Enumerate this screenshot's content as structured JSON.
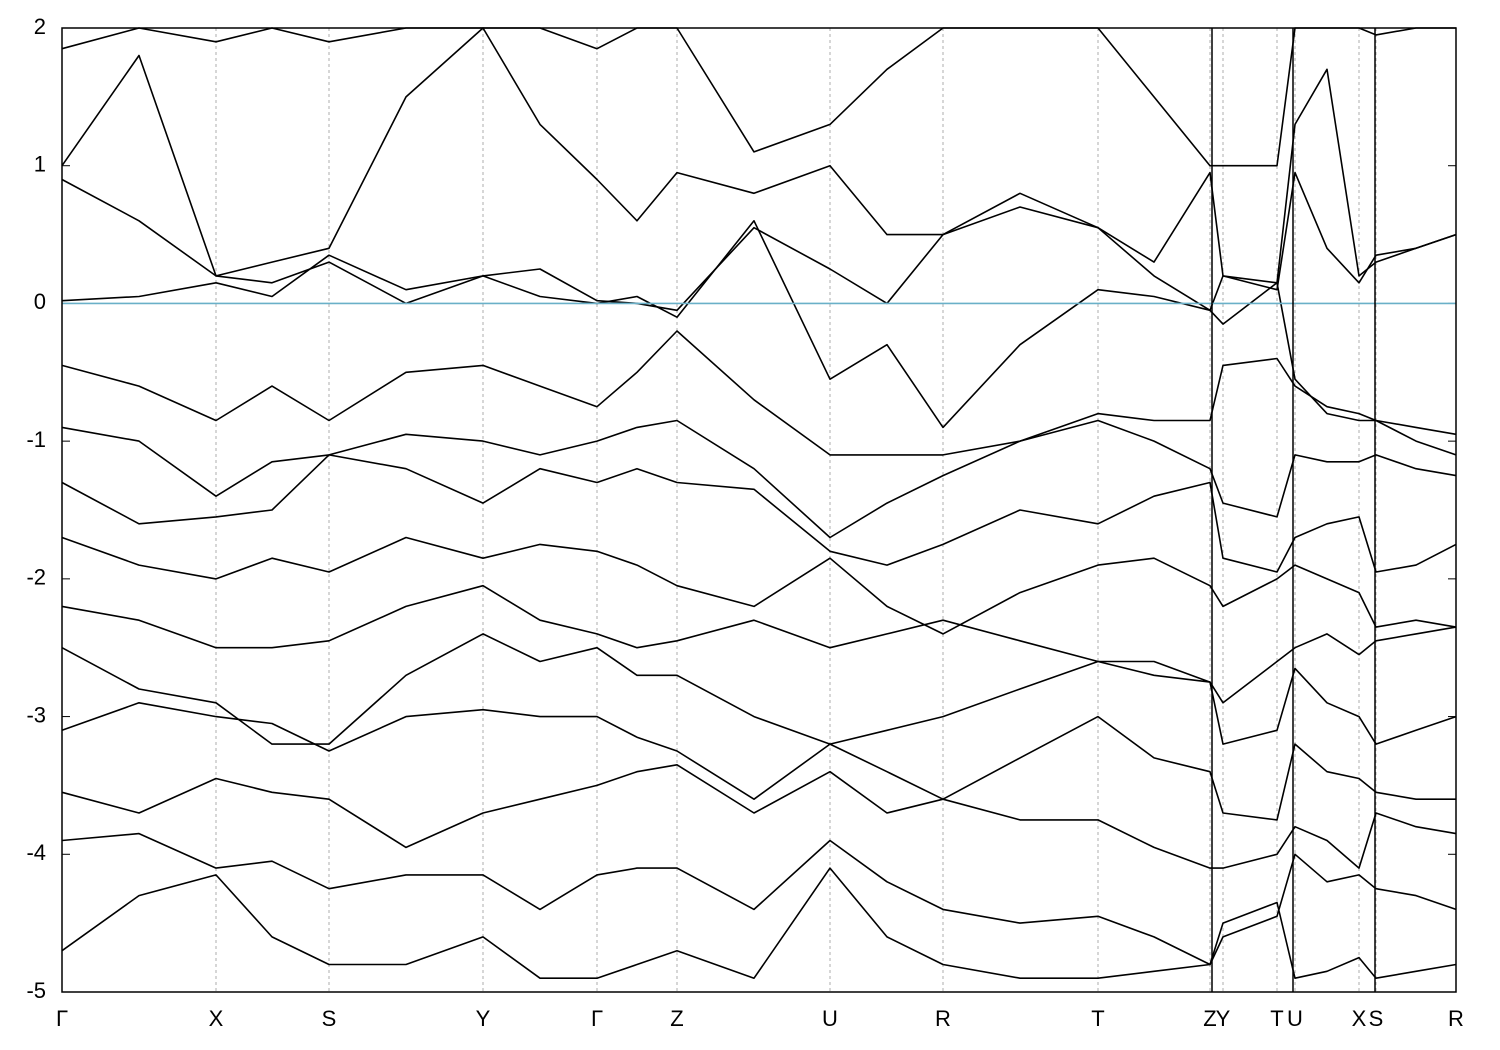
{
  "chart_data": {
    "type": "line",
    "x": [
      0,
      77,
      154,
      210,
      267,
      344,
      421,
      478,
      535,
      575,
      615,
      692,
      768,
      825,
      881,
      958,
      1036,
      1092,
      1148,
      1161,
      1215,
      1233,
      1265,
      1297,
      1314,
      1354,
      1394
    ],
    "xlim": [
      0,
      1394
    ],
    "xticks": [
      {
        "value": 0,
        "label": "Γ"
      },
      {
        "value": 154,
        "label": "X"
      },
      {
        "value": 267,
        "label": "S"
      },
      {
        "value": 421,
        "label": "Y"
      },
      {
        "value": 535,
        "label": "Γ"
      },
      {
        "value": 615,
        "label": "Z"
      },
      {
        "value": 768,
        "label": "U"
      },
      {
        "value": 881,
        "label": "R"
      },
      {
        "value": 1036,
        "label": "T"
      },
      {
        "value": 1148,
        "label": "Z"
      },
      {
        "value": 1161,
        "label": "Y"
      },
      {
        "value": 1215,
        "label": "T"
      },
      {
        "value": 1233,
        "label": "U"
      },
      {
        "value": 1297,
        "label": "X"
      },
      {
        "value": 1314,
        "label": "S"
      },
      {
        "value": 1394,
        "label": "R"
      }
    ],
    "ylim": [
      -5,
      2
    ],
    "yticks": [
      -5,
      -4,
      -3,
      -2,
      -1,
      0,
      1,
      2
    ],
    "xgrid": true,
    "color": "#000000",
    "reference_line": {
      "value": 0,
      "color": "#6ab0c8"
    },
    "series": [
      {
        "values": [
          0.02,
          0.05,
          0.15,
          0.05,
          0.35,
          0.1,
          0.2,
          0.25,
          0.02,
          0.0,
          -0.05,
          0.55,
          0.25,
          0.0,
          0.5,
          0.7,
          0.55,
          0.2,
          -0.05,
          0.2,
          0.1,
          0.95,
          0.4,
          0.15,
          0.35,
          0.4,
          0.5
        ]
      },
      {
        "values": [
          0.9,
          0.6,
          0.2,
          0.15,
          0.3,
          0.0,
          0.2,
          0.05,
          0.0,
          0.05,
          -0.1,
          0.6,
          -0.55,
          -0.3,
          -0.9,
          -0.3,
          0.1,
          0.05,
          -0.05,
          -0.15,
          0.15,
          -0.55,
          -0.8,
          -0.85,
          -0.85,
          -0.9,
          -0.95
        ]
      },
      {
        "values": [
          -0.45,
          -0.6,
          -0.85,
          -0.6,
          -0.85,
          -0.5,
          -0.45,
          -0.6,
          -0.75,
          -0.5,
          -0.2,
          -0.7,
          -1.1,
          -1.1,
          -1.1,
          -1.0,
          -0.8,
          -0.85,
          -0.85,
          -0.45,
          -0.4,
          -0.6,
          -0.75,
          -0.8,
          -0.85,
          -1.0,
          -1.1
        ]
      },
      {
        "values": [
          -0.9,
          -1.0,
          -1.4,
          -1.15,
          -1.1,
          -0.95,
          -1.0,
          -1.1,
          -1.0,
          -0.9,
          -0.85,
          -1.2,
          -1.7,
          -1.45,
          -1.25,
          -1.0,
          -0.85,
          -1.0,
          -1.2,
          -1.45,
          -1.55,
          -1.1,
          -1.15,
          -1.15,
          -1.1,
          -1.2,
          -1.25
        ]
      },
      {
        "values": [
          -1.3,
          -1.6,
          -1.55,
          -1.5,
          -1.1,
          -1.2,
          -1.45,
          -1.2,
          -1.3,
          -1.2,
          -1.3,
          -1.35,
          -1.8,
          -1.9,
          -1.75,
          -1.5,
          -1.6,
          -1.4,
          -1.3,
          -1.85,
          -1.95,
          -1.7,
          -1.6,
          -1.55,
          -1.95,
          -1.9,
          -1.75
        ]
      },
      {
        "values": [
          -1.7,
          -1.9,
          -2.0,
          -1.85,
          -1.95,
          -1.7,
          -1.85,
          -1.75,
          -1.8,
          -1.9,
          -2.05,
          -2.2,
          -1.85,
          -2.2,
          -2.4,
          -2.1,
          -1.9,
          -1.85,
          -2.05,
          -2.2,
          -2.0,
          -1.9,
          -2.0,
          -2.1,
          -2.35,
          -2.3,
          -2.35
        ]
      },
      {
        "values": [
          -2.2,
          -2.3,
          -2.5,
          -2.5,
          -2.45,
          -2.2,
          -2.05,
          -2.3,
          -2.4,
          -2.5,
          -2.45,
          -2.3,
          -2.5,
          -2.4,
          -2.3,
          -2.45,
          -2.6,
          -2.7,
          -2.75,
          -2.9,
          -2.6,
          -2.5,
          -2.4,
          -2.55,
          -2.45,
          -2.4,
          -2.35
        ]
      },
      {
        "values": [
          -2.5,
          -2.8,
          -2.9,
          -3.2,
          -3.2,
          -2.7,
          -2.4,
          -2.6,
          -2.5,
          -2.7,
          -2.7,
          -3.0,
          -3.2,
          -3.1,
          -3.0,
          -2.8,
          -2.6,
          -2.6,
          -2.75,
          -3.2,
          -3.1,
          -2.65,
          -2.9,
          -3.0,
          -3.2,
          -3.1,
          -3.0
        ]
      },
      {
        "values": [
          -3.1,
          -2.9,
          -3.0,
          -3.05,
          -3.25,
          -3.0,
          -2.95,
          -3.0,
          -3.0,
          -3.15,
          -3.25,
          -3.6,
          -3.2,
          -3.4,
          -3.6,
          -3.3,
          -3.0,
          -3.3,
          -3.4,
          -3.7,
          -3.75,
          -3.2,
          -3.4,
          -3.45,
          -3.55,
          -3.6,
          -3.6
        ]
      },
      {
        "values": [
          -3.55,
          -3.7,
          -3.45,
          -3.55,
          -3.6,
          -3.95,
          -3.7,
          -3.6,
          -3.5,
          -3.4,
          -3.35,
          -3.7,
          -3.4,
          -3.7,
          -3.6,
          -3.75,
          -3.75,
          -3.95,
          -4.1,
          -4.1,
          -4.0,
          -3.8,
          -3.9,
          -4.1,
          -3.7,
          -3.8,
          -3.85
        ]
      },
      {
        "values": [
          -3.9,
          -3.85,
          -4.1,
          -4.05,
          -4.25,
          -4.15,
          -4.15,
          -4.4,
          -4.15,
          -4.1,
          -4.1,
          -4.4,
          -3.9,
          -4.2,
          -4.4,
          -4.5,
          -4.45,
          -4.6,
          -4.8,
          -4.6,
          -4.45,
          -4.0,
          -4.2,
          -4.15,
          -4.25,
          -4.3,
          -4.4
        ]
      },
      {
        "values": [
          -4.7,
          -4.3,
          -4.15,
          -4.6,
          -4.8,
          -4.8,
          -4.6,
          -4.9,
          -4.9,
          -4.8,
          -4.7,
          -4.9,
          -4.1,
          -4.6,
          -4.8,
          -4.9,
          -4.9,
          -4.85,
          -4.8,
          -4.5,
          -4.35,
          -4.9,
          -4.85,
          -4.75,
          -4.9,
          -4.85,
          -4.8
        ]
      },
      {
        "values": [
          1.0,
          1.8,
          0.2,
          0.3,
          0.4,
          1.5,
          2.0,
          1.3,
          0.9,
          0.6,
          0.95,
          0.8,
          1.0,
          0.5,
          0.5,
          0.8,
          0.55,
          0.3,
          0.95,
          0.2,
          0.15,
          1.3,
          1.7,
          0.2,
          0.3,
          0.4,
          0.5
        ]
      },
      {
        "values": [
          1.85,
          2.0,
          1.9,
          2.0,
          1.9,
          2.0,
          2.0,
          2.0,
          1.85,
          2.0,
          2.0,
          1.1,
          1.3,
          1.7,
          2.0,
          2.0,
          2.0,
          1.5,
          1.0,
          1.0,
          1.0,
          2.0,
          2.0,
          2.0,
          1.95,
          2.0,
          2.0
        ]
      }
    ]
  }
}
